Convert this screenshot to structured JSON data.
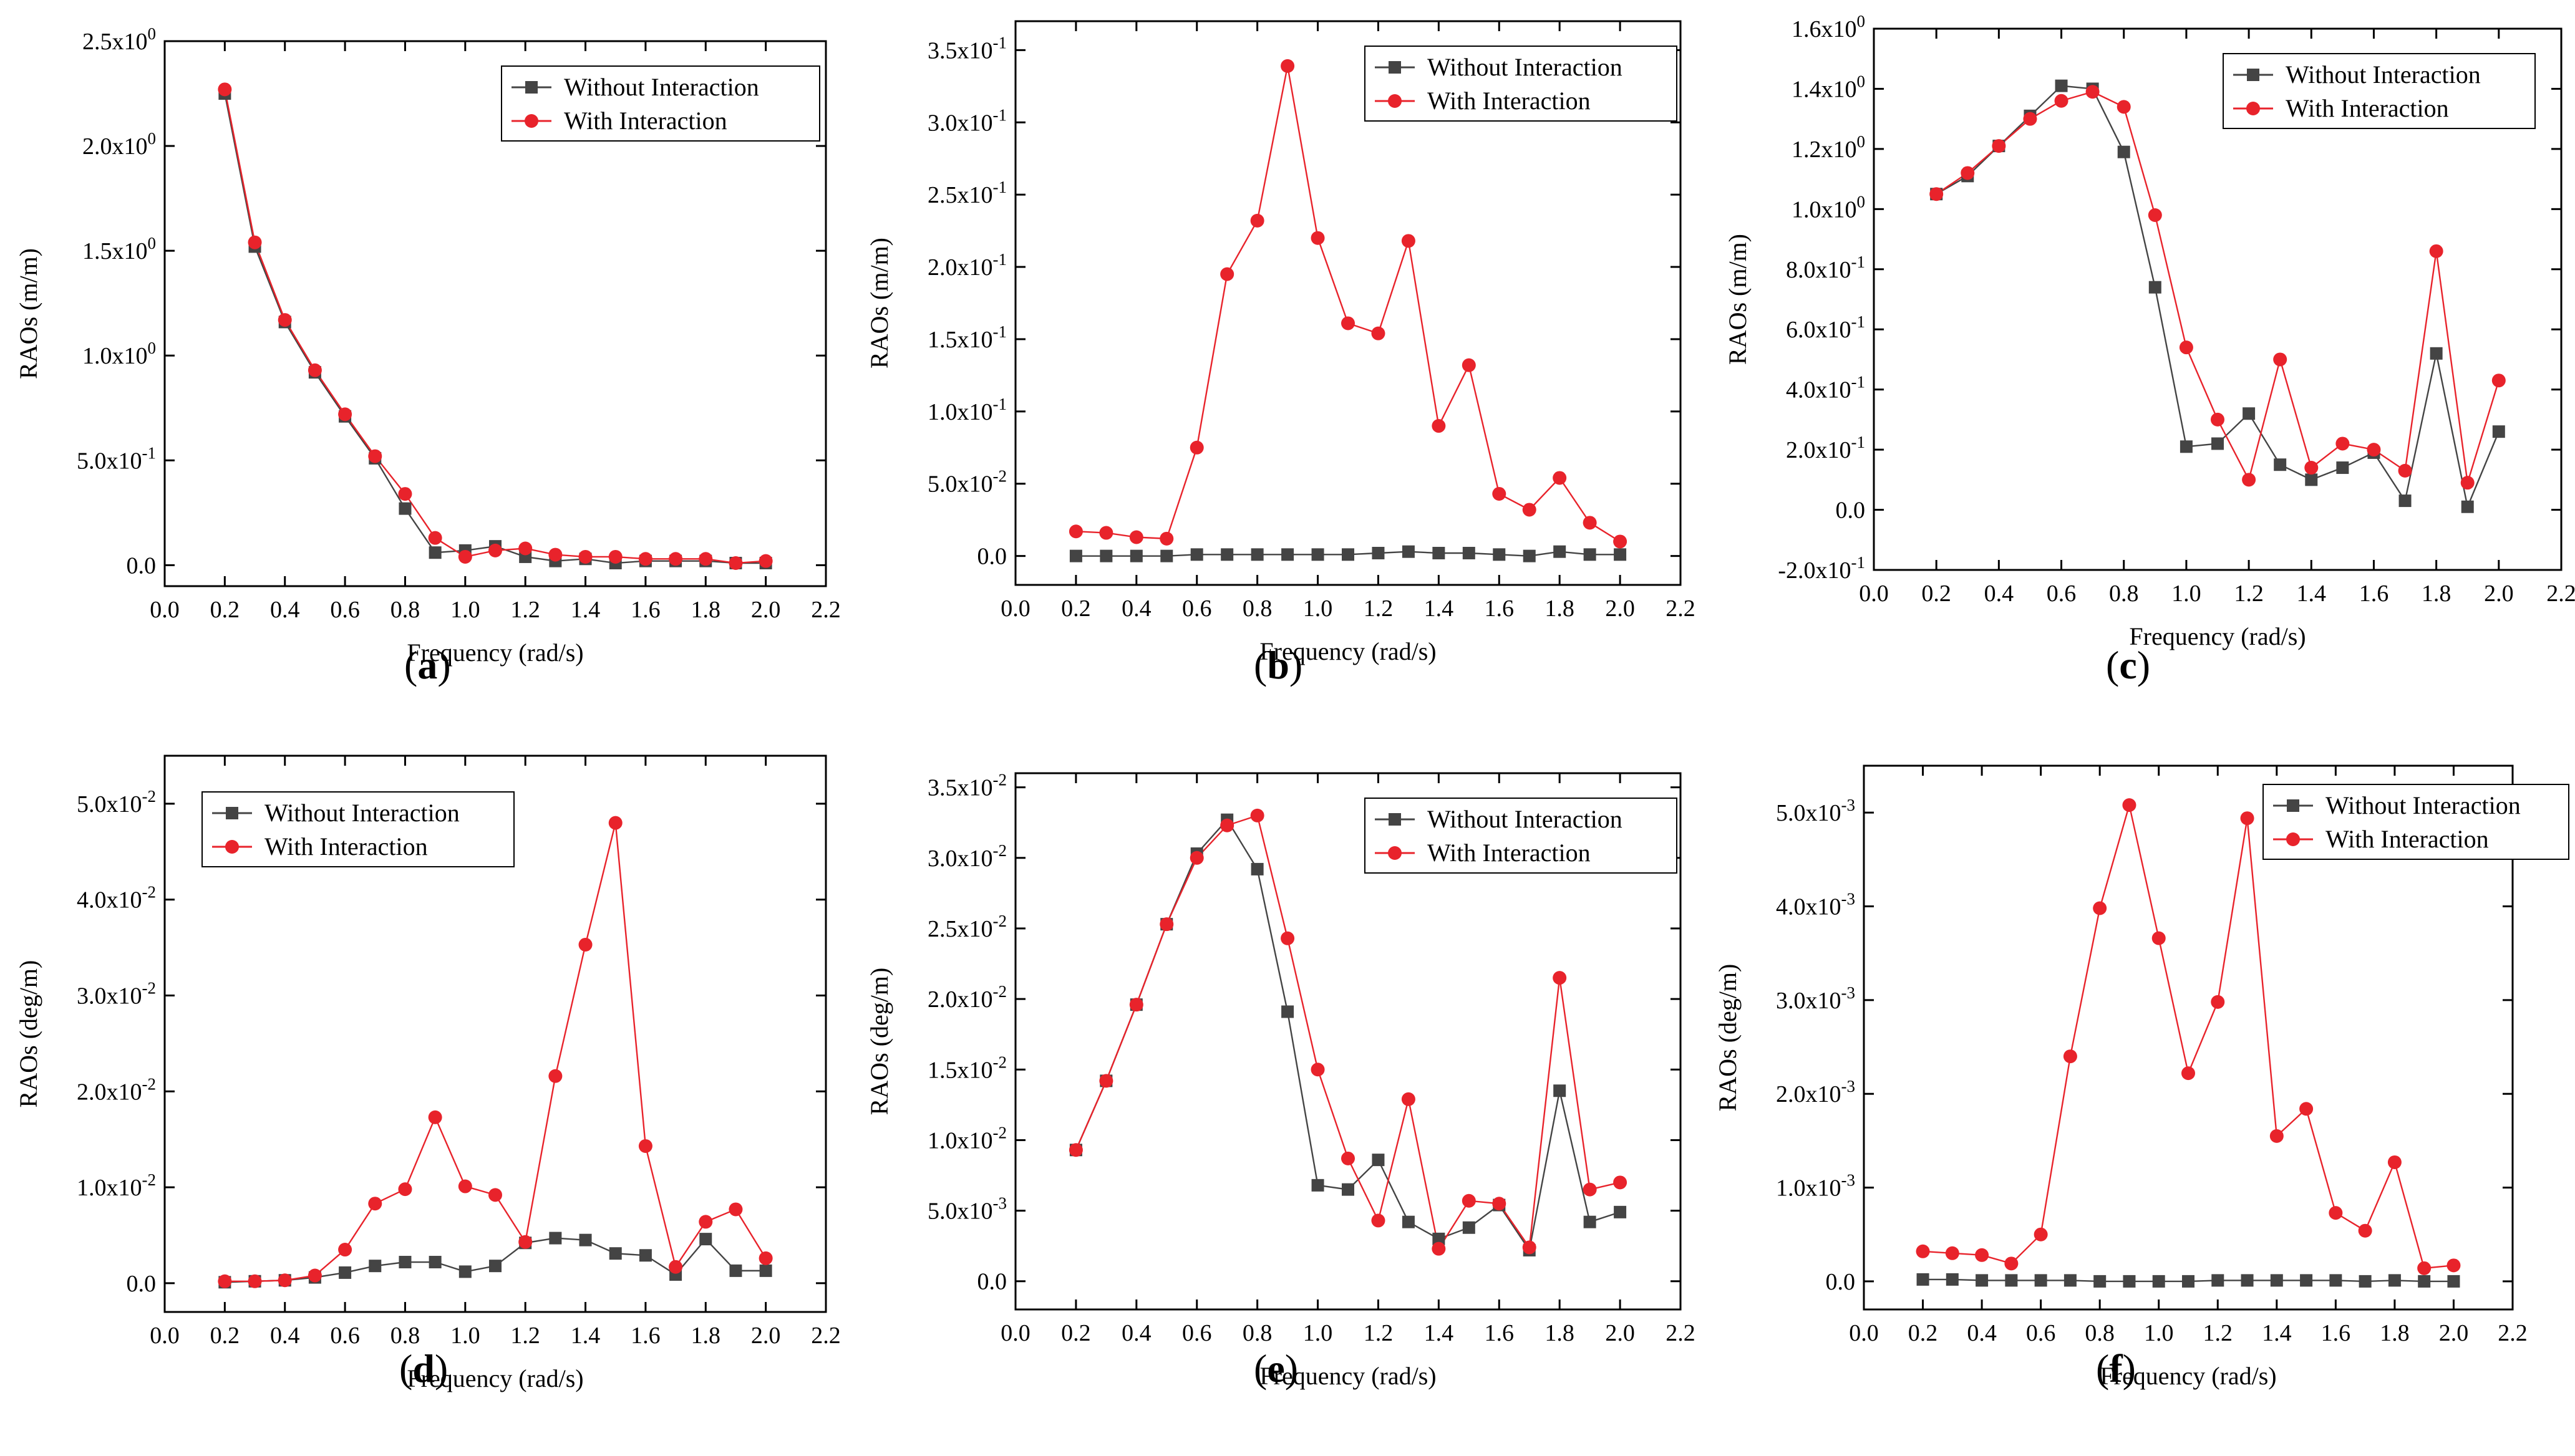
{
  "figure": {
    "colors": {
      "without": "#444444",
      "with": "#e8232b",
      "axis": "#000000"
    },
    "legend": [
      "Without Interaction",
      "With Interaction"
    ]
  },
  "panels": [
    {
      "id": "a",
      "label_letter": "a",
      "label_open": "(",
      "label_close": ")",
      "ylabel": "RAOs (m/m)",
      "xlabel": "Frequency (rad/s)",
      "xlim": [
        0.0,
        2.2
      ],
      "ylim": [
        -0.1,
        2.5
      ],
      "xticks": [
        "0.0",
        "0.2",
        "0.4",
        "0.6",
        "0.8",
        "1.0",
        "1.2",
        "1.4",
        "1.6",
        "1.8",
        "2.0",
        "2.2"
      ],
      "yticks": [
        {
          "value": 0.0,
          "label": "0.0"
        },
        {
          "value": 0.5,
          "label": "5.0x10",
          "exp": "-1"
        },
        {
          "value": 1.0,
          "label": "1.0x10",
          "exp": "0"
        },
        {
          "value": 1.5,
          "label": "1.5x10",
          "exp": "0"
        },
        {
          "value": 2.0,
          "label": "2.0x10",
          "exp": "0"
        },
        {
          "value": 2.5,
          "label": "2.5x10",
          "exp": "0"
        }
      ],
      "legend_pos": "top-right"
    },
    {
      "id": "b",
      "label_letter": "b",
      "label_open": "(",
      "label_close": ")",
      "ylabel": "RAOs (m/m)",
      "xlabel": "Frequency (rad/s)",
      "xlim": [
        0.0,
        2.2
      ],
      "ylim": [
        -0.02,
        0.37
      ],
      "xticks": [
        "0.0",
        "0.2",
        "0.4",
        "0.6",
        "0.8",
        "1.0",
        "1.2",
        "1.4",
        "1.6",
        "1.8",
        "2.0",
        "2.2"
      ],
      "yticks": [
        {
          "value": 0.0,
          "label": "0.0"
        },
        {
          "value": 0.05,
          "label": "5.0x10",
          "exp": "-2"
        },
        {
          "value": 0.1,
          "label": "1.0x10",
          "exp": "-1"
        },
        {
          "value": 0.15,
          "label": "1.5x10",
          "exp": "-1"
        },
        {
          "value": 0.2,
          "label": "2.0x10",
          "exp": "-1"
        },
        {
          "value": 0.25,
          "label": "2.5x10",
          "exp": "-1"
        },
        {
          "value": 0.3,
          "label": "3.0x10",
          "exp": "-1"
        },
        {
          "value": 0.35,
          "label": "3.5x10",
          "exp": "-1"
        }
      ],
      "legend_pos": "top-right"
    },
    {
      "id": "c",
      "label_letter": "c",
      "label_open": "(",
      "label_close": ")",
      "ylabel": "RAOs (m/m)",
      "xlabel": "Frequency (rad/s)",
      "xlim": [
        0.0,
        2.2
      ],
      "ylim": [
        -0.2,
        1.6
      ],
      "xticks": [
        "0.0",
        "0.2",
        "0.4",
        "0.6",
        "0.8",
        "1.0",
        "1.2",
        "1.4",
        "1.6",
        "1.8",
        "2.0",
        "2.2"
      ],
      "yticks": [
        {
          "value": -0.2,
          "label": "-2.0x10",
          "exp": "-1"
        },
        {
          "value": 0.0,
          "label": "0.0"
        },
        {
          "value": 0.2,
          "label": "2.0x10",
          "exp": "-1"
        },
        {
          "value": 0.4,
          "label": "4.0x10",
          "exp": "-1"
        },
        {
          "value": 0.6,
          "label": "6.0x10",
          "exp": "-1"
        },
        {
          "value": 0.8,
          "label": "8.0x10",
          "exp": "-1"
        },
        {
          "value": 1.0,
          "label": "1.0x10",
          "exp": "0"
        },
        {
          "value": 1.2,
          "label": "1.2x10",
          "exp": "0"
        },
        {
          "value": 1.4,
          "label": "1.4x10",
          "exp": "0"
        },
        {
          "value": 1.6,
          "label": "1.6x10",
          "exp": "0"
        }
      ],
      "legend_pos": "top-right"
    },
    {
      "id": "d",
      "label_letter": "d",
      "label_open": "(",
      "label_close": ")",
      "ylabel": "RAOs (deg/m)",
      "xlabel": "Frequency (rad/s)",
      "xlim": [
        0.0,
        2.2
      ],
      "ylim": [
        -0.003,
        0.055
      ],
      "xticks": [
        "0.0",
        "0.2",
        "0.4",
        "0.6",
        "0.8",
        "1.0",
        "1.2",
        "1.4",
        "1.6",
        "1.8",
        "2.0",
        "2.2"
      ],
      "yticks": [
        {
          "value": 0.0,
          "label": "0.0"
        },
        {
          "value": 0.01,
          "label": "1.0x10",
          "exp": "-2"
        },
        {
          "value": 0.02,
          "label": "2.0x10",
          "exp": "-2"
        },
        {
          "value": 0.03,
          "label": "3.0x10",
          "exp": "-2"
        },
        {
          "value": 0.04,
          "label": "4.0x10",
          "exp": "-2"
        },
        {
          "value": 0.05,
          "label": "5.0x10",
          "exp": "-2"
        }
      ],
      "legend_pos": "top-left"
    },
    {
      "id": "e",
      "label_letter": "e",
      "label_open": "(",
      "label_close": ")",
      "ylabel": "RAOs (deg/m)",
      "xlabel": "Frequency (rad/s)",
      "xlim": [
        0.0,
        2.2
      ],
      "ylim": [
        -0.002,
        0.036
      ],
      "xticks": [
        "0.0",
        "0.2",
        "0.4",
        "0.6",
        "0.8",
        "1.0",
        "1.2",
        "1.4",
        "1.6",
        "1.8",
        "2.0",
        "2.2"
      ],
      "yticks": [
        {
          "value": 0.0,
          "label": "0.0"
        },
        {
          "value": 0.005,
          "label": "5.0x10",
          "exp": "-3"
        },
        {
          "value": 0.01,
          "label": "1.0x10",
          "exp": "-2"
        },
        {
          "value": 0.015,
          "label": "1.5x10",
          "exp": "-2"
        },
        {
          "value": 0.02,
          "label": "2.0x10",
          "exp": "-2"
        },
        {
          "value": 0.025,
          "label": "2.5x10",
          "exp": "-2"
        },
        {
          "value": 0.03,
          "label": "3.0x10",
          "exp": "-2"
        },
        {
          "value": 0.035,
          "label": "3.5x10",
          "exp": "-2"
        }
      ],
      "legend_pos": "top-right"
    },
    {
      "id": "f",
      "label_letter": "f",
      "label_open": "(",
      "label_close": ")",
      "ylabel": "RAOs (deg/m)",
      "xlabel": "Frequency (rad/s)",
      "xlim": [
        0.0,
        2.2
      ],
      "ylim": [
        -0.0003,
        0.0055
      ],
      "xticks": [
        "0.0",
        "0.2",
        "0.4",
        "0.6",
        "0.8",
        "1.0",
        "1.2",
        "1.4",
        "1.6",
        "1.8",
        "2.0",
        "2.2"
      ],
      "yticks": [
        {
          "value": 0.0,
          "label": "0.0"
        },
        {
          "value": 0.001,
          "label": "1.0x10",
          "exp": "-3"
        },
        {
          "value": 0.002,
          "label": "2.0x10",
          "exp": "-3"
        },
        {
          "value": 0.003,
          "label": "3.0x10",
          "exp": "-3"
        },
        {
          "value": 0.004,
          "label": "4.0x10",
          "exp": "-3"
        },
        {
          "value": 0.005,
          "label": "5.0x10",
          "exp": "-3"
        }
      ],
      "legend_pos": "top-right"
    }
  ],
  "chart_data": [
    {
      "type": "line",
      "panel": "a",
      "xlabel": "Frequency (rad/s)",
      "ylabel": "RAOs (m/m)",
      "xlim": [
        0.0,
        2.2
      ],
      "ylim": [
        -0.1,
        2.5
      ],
      "x": [
        0.2,
        0.3,
        0.4,
        0.5,
        0.6,
        0.7,
        0.8,
        0.9,
        1.0,
        1.1,
        1.2,
        1.3,
        1.4,
        1.5,
        1.6,
        1.7,
        1.8,
        1.9,
        2.0
      ],
      "series": [
        {
          "name": "Without Interaction",
          "values": [
            2.25,
            1.52,
            1.16,
            0.92,
            0.71,
            0.51,
            0.27,
            0.06,
            0.07,
            0.09,
            0.04,
            0.02,
            0.03,
            0.01,
            0.02,
            0.02,
            0.02,
            0.01,
            0.01
          ]
        },
        {
          "name": "With Interaction",
          "values": [
            2.27,
            1.54,
            1.17,
            0.93,
            0.72,
            0.52,
            0.34,
            0.13,
            0.04,
            0.07,
            0.08,
            0.05,
            0.04,
            0.04,
            0.03,
            0.03,
            0.03,
            0.01,
            0.02
          ]
        }
      ]
    },
    {
      "type": "line",
      "panel": "b",
      "xlabel": "Frequency (rad/s)",
      "ylabel": "RAOs (m/m)",
      "xlim": [
        0.0,
        2.2
      ],
      "ylim": [
        -0.02,
        0.37
      ],
      "x": [
        0.2,
        0.3,
        0.4,
        0.5,
        0.6,
        0.7,
        0.8,
        0.9,
        1.0,
        1.1,
        1.2,
        1.3,
        1.4,
        1.5,
        1.6,
        1.7,
        1.8,
        1.9,
        2.0
      ],
      "series": [
        {
          "name": "Without Interaction",
          "values": [
            0.0,
            0.0,
            0.0,
            0.0,
            0.001,
            0.001,
            0.001,
            0.001,
            0.001,
            0.001,
            0.002,
            0.003,
            0.002,
            0.002,
            0.001,
            0.0,
            0.003,
            0.001,
            0.001
          ]
        },
        {
          "name": "With Interaction",
          "values": [
            0.017,
            0.016,
            0.013,
            0.012,
            0.075,
            0.195,
            0.232,
            0.339,
            0.22,
            0.161,
            0.154,
            0.218,
            0.09,
            0.132,
            0.043,
            0.032,
            0.054,
            0.023,
            0.01
          ]
        }
      ]
    },
    {
      "type": "line",
      "panel": "c",
      "xlabel": "Frequency (rad/s)",
      "ylabel": "RAOs (m/m)",
      "xlim": [
        0.0,
        2.2
      ],
      "ylim": [
        -0.2,
        1.6
      ],
      "x": [
        0.2,
        0.3,
        0.4,
        0.5,
        0.6,
        0.7,
        0.8,
        0.9,
        1.0,
        1.1,
        1.2,
        1.3,
        1.4,
        1.5,
        1.6,
        1.7,
        1.8,
        1.9,
        2.0
      ],
      "series": [
        {
          "name": "Without Interaction",
          "values": [
            1.05,
            1.11,
            1.21,
            1.31,
            1.41,
            1.4,
            1.19,
            0.74,
            0.21,
            0.22,
            0.32,
            0.15,
            0.1,
            0.14,
            0.19,
            0.03,
            0.52,
            0.01,
            0.26
          ]
        },
        {
          "name": "With Interaction",
          "values": [
            1.05,
            1.12,
            1.21,
            1.3,
            1.36,
            1.39,
            1.34,
            0.98,
            0.54,
            0.3,
            0.1,
            0.5,
            0.14,
            0.22,
            0.2,
            0.13,
            0.86,
            0.09,
            0.43
          ]
        }
      ]
    },
    {
      "type": "line",
      "panel": "d",
      "xlabel": "Frequency (rad/s)",
      "ylabel": "RAOs (deg/m)",
      "xlim": [
        0.0,
        2.2
      ],
      "ylim": [
        -0.003,
        0.055
      ],
      "x": [
        0.2,
        0.3,
        0.4,
        0.5,
        0.6,
        0.7,
        0.8,
        0.9,
        1.0,
        1.1,
        1.2,
        1.3,
        1.4,
        1.5,
        1.6,
        1.7,
        1.8,
        1.9,
        2.0
      ],
      "series": [
        {
          "name": "Without Interaction",
          "values": [
            0.0001,
            0.0002,
            0.0003,
            0.0006,
            0.0011,
            0.0018,
            0.0022,
            0.0022,
            0.0012,
            0.0018,
            0.0042,
            0.0047,
            0.0045,
            0.0031,
            0.0029,
            0.0009,
            0.0046,
            0.0013,
            0.0013
          ]
        },
        {
          "name": "With Interaction",
          "values": [
            0.0002,
            0.0002,
            0.0003,
            0.0008,
            0.0035,
            0.0083,
            0.0098,
            0.0173,
            0.0101,
            0.0092,
            0.0043,
            0.0216,
            0.0353,
            0.048,
            0.0143,
            0.0017,
            0.0064,
            0.0077,
            0.0026
          ]
        }
      ]
    },
    {
      "type": "line",
      "panel": "e",
      "xlabel": "Frequency (rad/s)",
      "ylabel": "RAOs (deg/m)",
      "xlim": [
        0.0,
        2.2
      ],
      "ylim": [
        -0.002,
        0.036
      ],
      "x": [
        0.2,
        0.3,
        0.4,
        0.5,
        0.6,
        0.7,
        0.8,
        0.9,
        1.0,
        1.1,
        1.2,
        1.3,
        1.4,
        1.5,
        1.6,
        1.7,
        1.8,
        1.9,
        2.0
      ],
      "series": [
        {
          "name": "Without Interaction",
          "values": [
            0.0093,
            0.0142,
            0.0196,
            0.0253,
            0.0303,
            0.0327,
            0.0292,
            0.0191,
            0.0068,
            0.0065,
            0.0086,
            0.0042,
            0.003,
            0.0038,
            0.0054,
            0.0022,
            0.0135,
            0.0042,
            0.0049
          ]
        },
        {
          "name": "With Interaction",
          "values": [
            0.0093,
            0.0142,
            0.0196,
            0.0253,
            0.03,
            0.0323,
            0.033,
            0.0243,
            0.015,
            0.0087,
            0.0043,
            0.0129,
            0.0023,
            0.0057,
            0.0055,
            0.0024,
            0.0215,
            0.0065,
            0.007
          ]
        }
      ]
    },
    {
      "type": "line",
      "panel": "f",
      "xlabel": "Frequency (rad/s)",
      "ylabel": "RAOs (deg/m)",
      "xlim": [
        0.0,
        2.2
      ],
      "ylim": [
        -0.0003,
        0.0055
      ],
      "x": [
        0.2,
        0.3,
        0.4,
        0.5,
        0.6,
        0.7,
        0.8,
        0.9,
        1.0,
        1.1,
        1.2,
        1.3,
        1.4,
        1.5,
        1.6,
        1.7,
        1.8,
        1.9,
        2.0
      ],
      "series": [
        {
          "name": "Without Interaction",
          "values": [
            2e-05,
            2e-05,
            1e-05,
            1e-05,
            1e-05,
            1e-05,
            0.0,
            0.0,
            0.0,
            0.0,
            1e-05,
            1e-05,
            1e-05,
            1e-05,
            1e-05,
            0.0,
            1e-05,
            0.0,
            0.0
          ]
        },
        {
          "name": "With Interaction",
          "values": [
            0.00032,
            0.0003,
            0.00028,
            0.00019,
            0.0005,
            0.0024,
            0.00398,
            0.00508,
            0.00366,
            0.00222,
            0.00298,
            0.00494,
            0.00155,
            0.00184,
            0.00073,
            0.00054,
            0.00127,
            0.00014,
            0.00017
          ]
        }
      ]
    }
  ]
}
